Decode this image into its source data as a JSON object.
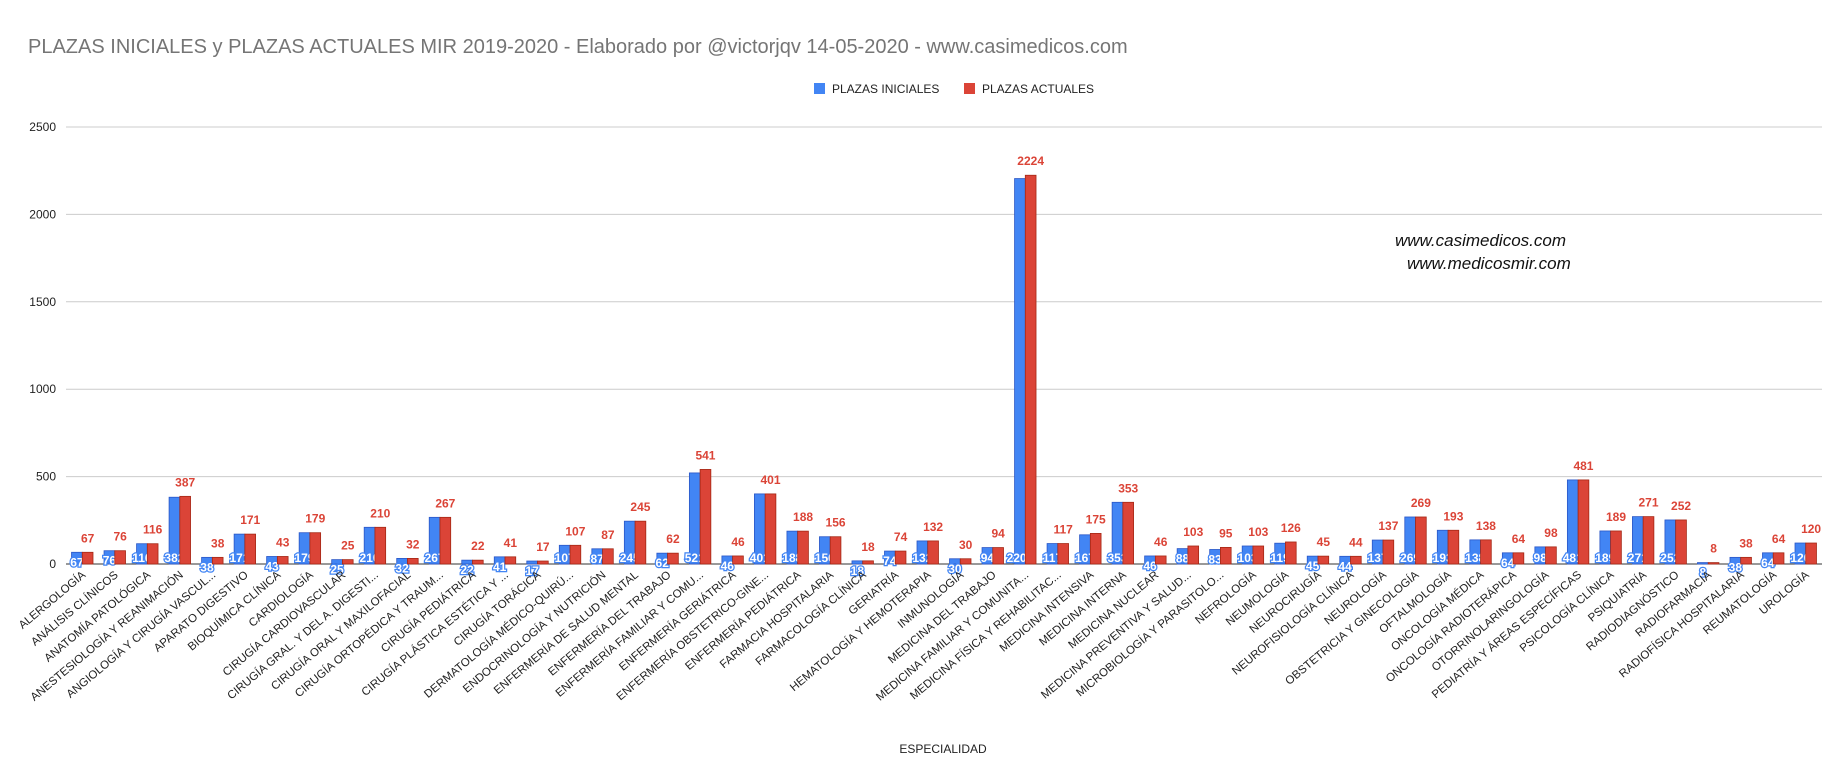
{
  "chart_data": {
    "type": "bar",
    "title": "PLAZAS INICIALES y PLAZAS ACTUALES MIR 2019-2020 - Elaborado por @victorjqv 14-05-2020 - www.casimedicos.com",
    "x_label": "ESPECIALIDAD",
    "annotations": [
      "www.casimedicos.com",
      "www.medicosmir.com"
    ],
    "categories": [
      "ALERGOLOGÍA",
      "ANÁLISIS CLÍNICOS",
      "ANATOMÍA PATOLÓGICA",
      "ANESTESIOLOGÍA Y REANIMACIÓN",
      "ANGIOLOGÍA Y CIRUGÍA VASCUL...",
      "APARATO DIGESTIVO",
      "BIOQUÍMICA CLÍNICA",
      "CARDIOLOGÍA",
      "CIRUGÍA CARDIOVASCULAR",
      "CIRUGÍA GRAL. Y DEL A. DIGESTI...",
      "CIRUGÍA ORAL Y MAXILOFACIAL",
      "CIRUGÍA ORTOPÉDICA Y TRAUM...",
      "CIRUGÍA PEDIÁTRICA",
      "CIRUGÍA PLÁSTICA ESTÉTICA Y ...",
      "CIRUGÍA TORÁCICA",
      "DERMATOLOGÍA MÉDICO-QUIRÚ...",
      "ENDOCRINOLOGÍA Y NUTRICIÓN",
      "ENFERMERÍA DE SALUD MENTAL",
      "ENFERMERÍA DEL TRABAJO",
      "ENFERMERÍA FAMILIAR Y COMU...",
      "ENFERMERÍA GERIÁTRICA",
      "ENFERMERÍA OBSTETRICO-GINE...",
      "ENFERMERÍA PEDIÁTRICA",
      "FARMACIA HOSPITALARIA",
      "FARMACOLOGÍA CLÍNICA",
      "GERIATRÍA",
      "HEMATOLOGÍA Y HEMOTERAPIA",
      "INMUNOLOGÍA",
      "MEDICINA DEL TRABAJO",
      "MEDICINA FAMILIAR Y COMUNITA...",
      "MEDICINA FÍSICA Y REHABILITAC...",
      "MEDICINA INTENSIVA",
      "MEDICINA INTERNA",
      "MEDICINA NUCLEAR",
      "MEDICINA PREVENTIVA Y SALUD...",
      "MICROBIOLOGÍA Y PARASITOLO...",
      "NEFROLOGÍA",
      "NEUMOLOGÍA",
      "NEUROCIRUGÍA",
      "NEUROFISIOLOGÍA CLÍNICA",
      "NEUROLOGÍA",
      "OBSTETRICIA Y GINECOLOGÍA",
      "OFTALMOLOGÍA",
      "ONCOLOGÍA MÉDICA",
      "ONCOLOGÍA RADIOTERÁPICA",
      "OTORRINOLARINGOLOGÍA",
      "PEDIATRÍA Y ÁREAS ESPECÍFICAS",
      "PSICOLOGÍA CLÍNICA",
      "PSIQUIATRÍA",
      "RADIODIAGNÓSTICO",
      "RADIOFARMACIA",
      "RADIOFÍSICA HOSPITALARIA",
      "REUMATOLOGÍA",
      "UROLOGÍA"
    ],
    "series": [
      {
        "name": "PLAZAS INICIALES",
        "color": "#4285f4",
        "values": [
          67,
          76,
          116,
          382,
          38,
          171,
          43,
          179,
          25,
          210,
          32,
          267,
          22,
          41,
          17,
          107,
          87,
          245,
          62,
          521,
          46,
          401,
          188,
          156,
          18,
          74,
          132,
          30,
          94,
          2205,
          117,
          167,
          353,
          46,
          88,
          83,
          103,
          119,
          45,
          44,
          137,
          269,
          193,
          138,
          64,
          98,
          481,
          189,
          271,
          252,
          8,
          38,
          64,
          120
        ]
      },
      {
        "name": "PLAZAS ACTUALES",
        "color": "#db4437",
        "values": [
          67,
          76,
          116,
          387,
          38,
          171,
          43,
          179,
          25,
          210,
          32,
          267,
          22,
          41,
          17,
          107,
          87,
          245,
          62,
          541,
          46,
          401,
          188,
          156,
          18,
          74,
          132,
          30,
          94,
          2224,
          117,
          175,
          353,
          46,
          103,
          95,
          103,
          126,
          45,
          44,
          137,
          269,
          193,
          138,
          64,
          98,
          481,
          189,
          271,
          252,
          8,
          38,
          64,
          120
        ]
      }
    ],
    "ylim": [
      0,
      2500
    ],
    "yticks": [
      0,
      500,
      1000,
      1500,
      2000,
      2500
    ],
    "grid": true,
    "legend": "top"
  }
}
